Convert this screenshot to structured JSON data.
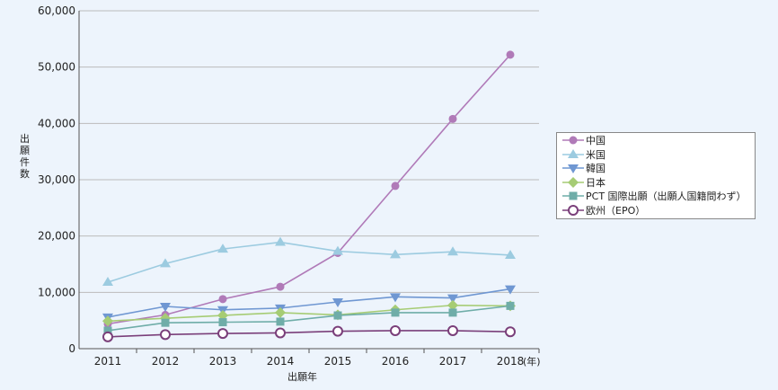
{
  "chart_data": {
    "type": "line",
    "x": [
      "2011",
      "2012",
      "2013",
      "2014",
      "2015",
      "2016",
      "2017",
      "2018"
    ],
    "x_unit_suffix": "(年)",
    "xlabel": "出願年",
    "ylabel": "出願件数",
    "ylim": [
      0,
      60000
    ],
    "yticks": [
      "0",
      "10,000",
      "20,000",
      "30,000",
      "40,000",
      "50,000",
      "60,000"
    ],
    "grid": true,
    "legend_position": "right",
    "series": [
      {
        "name": "中国",
        "color": "#b07ab8",
        "marker": "circle",
        "values": [
          4400,
          6000,
          8800,
          11000,
          17000,
          28900,
          40800,
          52200
        ]
      },
      {
        "name": "米国",
        "color": "#9ccbe0",
        "marker": "triangle-up",
        "values": [
          11800,
          15100,
          17700,
          18900,
          17300,
          16700,
          17200,
          16600
        ]
      },
      {
        "name": "韓国",
        "color": "#6f97d2",
        "marker": "triangle-down",
        "values": [
          5600,
          7500,
          6900,
          7200,
          8300,
          9200,
          9000,
          10600
        ]
      },
      {
        "name": "日本",
        "color": "#a6cc74",
        "marker": "diamond",
        "values": [
          4900,
          5400,
          5900,
          6400,
          6000,
          6900,
          7700,
          7600
        ]
      },
      {
        "name": "PCT 国際出願（出願人国籍問わず）",
        "color": "#6fada8",
        "marker": "square",
        "values": [
          3200,
          4600,
          4700,
          4800,
          5900,
          6400,
          6400,
          7600
        ]
      },
      {
        "name": "欧州（EPO）",
        "color": "#7a3f7a",
        "marker": "open-circle",
        "values": [
          2100,
          2500,
          2700,
          2800,
          3100,
          3200,
          3200,
          3000
        ]
      }
    ]
  }
}
